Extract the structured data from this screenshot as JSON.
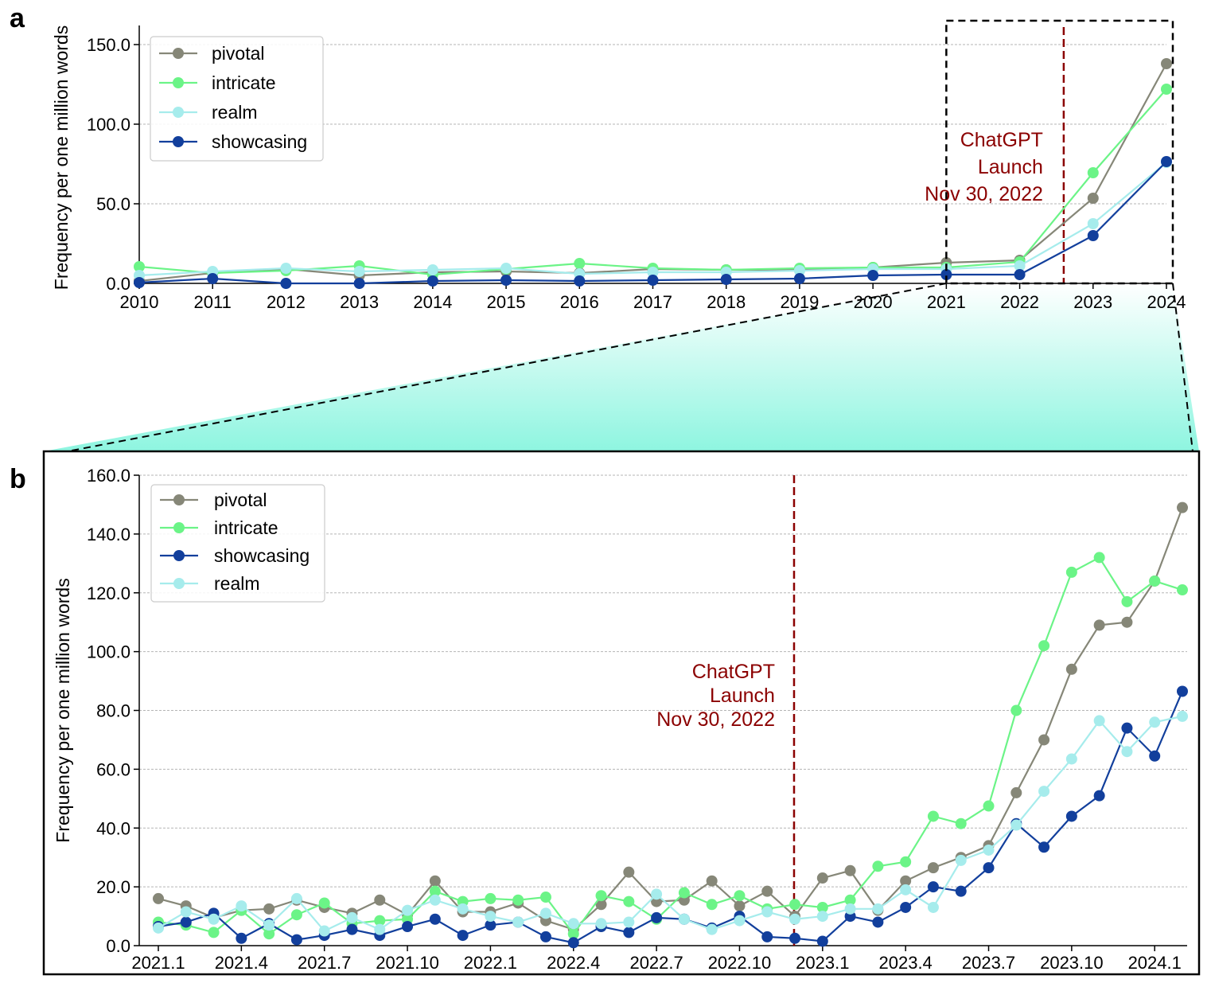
{
  "panels": {
    "a": {
      "letter": "a"
    },
    "b": {
      "letter": "b"
    }
  },
  "colors": {
    "pivotal": "#868778",
    "intricate": "#6bf487",
    "realm": "#a6ecec",
    "showcasing": "#123f9c",
    "annotation": "#8b0000",
    "zoom_fill": "#8ef5e0"
  },
  "chart_data": [
    {
      "id": "a",
      "type": "line",
      "x": [
        2010,
        2011,
        2012,
        2013,
        2014,
        2015,
        2016,
        2017,
        2018,
        2019,
        2020,
        2021,
        2022,
        2023,
        2024
      ],
      "xlim": [
        2010,
        2024
      ],
      "ylim": [
        0,
        160
      ],
      "yticks": [
        0,
        50,
        100,
        150
      ],
      "ytick_labels": [
        "0.0",
        "50.0",
        "100.0",
        "150.0"
      ],
      "xtick_labels": [
        "2010",
        "2011",
        "2012",
        "2013",
        "2014",
        "2015",
        "2016",
        "2017",
        "2018",
        "2019",
        "2020",
        "2021",
        "2022",
        "2023",
        "2024"
      ],
      "ylabel": "Frequency per one million words",
      "xlabel": "",
      "grid": "horizontal dotted",
      "legend_position": "top-left",
      "annotation": {
        "lines": [
          "ChatGPT",
          "Launch",
          "Nov 30, 2022"
        ],
        "x": 2022.6
      },
      "zoom_region": {
        "x": [
          2021,
          2024
        ],
        "y": [
          0,
          165
        ]
      },
      "series": [
        {
          "name": "pivotal",
          "color_key": "pivotal",
          "values": [
            1.5,
            6.5,
            9,
            5,
            7,
            7.5,
            6.5,
            9,
            8.5,
            8.5,
            10,
            13,
            14.5,
            53.5,
            138
          ]
        },
        {
          "name": "intricate",
          "color_key": "intricate",
          "values": [
            10.5,
            6.5,
            8,
            11,
            5.5,
            9,
            12.5,
            9.5,
            8.5,
            9.5,
            10,
            10,
            13.5,
            69.5,
            122
          ]
        },
        {
          "name": "realm",
          "color_key": "realm",
          "values": [
            5,
            7.5,
            9.5,
            7.5,
            8.5,
            9.5,
            6,
            7,
            7,
            8,
            9,
            9,
            11,
            37.5,
            76
          ]
        },
        {
          "name": "showcasing",
          "color_key": "showcasing",
          "values": [
            0.5,
            3,
            0,
            0,
            1.5,
            2,
            1.5,
            2,
            2.5,
            3,
            5,
            5.5,
            5.5,
            30,
            76.5
          ]
        }
      ]
    },
    {
      "id": "b",
      "type": "line",
      "x": [
        "2021.1",
        "2021.2",
        "2021.3",
        "2021.4",
        "2021.5",
        "2021.6",
        "2021.7",
        "2021.8",
        "2021.9",
        "2021.10",
        "2021.11",
        "2021.12",
        "2022.1",
        "2022.2",
        "2022.3",
        "2022.4",
        "2022.5",
        "2022.6",
        "2022.7",
        "2022.8",
        "2022.9",
        "2022.10",
        "2022.11",
        "2022.12",
        "2023.1",
        "2023.2",
        "2023.3",
        "2023.4",
        "2023.5",
        "2023.6",
        "2023.7",
        "2023.8",
        "2023.9",
        "2023.10",
        "2023.11",
        "2023.12",
        "2024.1",
        "2024.2"
      ],
      "xtick_labels": [
        "2021.1",
        "2021.4",
        "2021.7",
        "2021.10",
        "2022.1",
        "2022.4",
        "2022.7",
        "2022.10",
        "2023.1",
        "2023.4",
        "2023.7",
        "2023.10",
        "2024.1"
      ],
      "ylim": [
        0,
        160
      ],
      "yticks": [
        0,
        20,
        40,
        60,
        80,
        100,
        120,
        140,
        160
      ],
      "ytick_labels": [
        "0.0",
        "20.0",
        "40.0",
        "60.0",
        "80.0",
        "100.0",
        "120.0",
        "140.0",
        "160.0"
      ],
      "ylabel": "Frequency per one million words",
      "xlabel": "",
      "grid": "horizontal dotted",
      "legend_position": "top-left",
      "annotation": {
        "lines": [
          "ChatGPT",
          "Launch",
          "Nov 30, 2022"
        ],
        "x": "2022.11 (30 Nov 2022)"
      },
      "series": [
        {
          "name": "pivotal",
          "color_key": "pivotal",
          "values": [
            16,
            13.5,
            9.5,
            12,
            12.5,
            15.5,
            13,
            11,
            15.5,
            10.5,
            22,
            11.5,
            11.5,
            14.5,
            8.5,
            5.5,
            14,
            25,
            15,
            15.5,
            22,
            13.5,
            18.5,
            10,
            23,
            25.5,
            12,
            22,
            26.5,
            30,
            34,
            52,
            70,
            94,
            109,
            110,
            124,
            149
          ]
        },
        {
          "name": "intricate",
          "color_key": "intricate",
          "values": [
            8,
            7,
            4.5,
            12,
            4,
            10.5,
            14.5,
            7.5,
            8.5,
            9,
            18.5,
            15,
            16,
            15.5,
            16.5,
            4,
            17,
            15,
            9,
            18,
            14,
            17,
            12.5,
            14,
            13,
            15.5,
            27,
            28.5,
            44,
            41.5,
            47.5,
            80,
            102,
            127,
            132,
            117,
            124,
            121
          ]
        },
        {
          "name": "showcasing",
          "color_key": "showcasing",
          "values": [
            6.5,
            8,
            11,
            2.5,
            7.5,
            2,
            3.5,
            5.5,
            3.5,
            6.5,
            9,
            3.5,
            7,
            8,
            3,
            1,
            6.5,
            4.5,
            9.5,
            9,
            6,
            10,
            3,
            2.5,
            1.5,
            10,
            8,
            13,
            20,
            18.5,
            26.5,
            41.5,
            33.5,
            44,
            51,
            74,
            64.5,
            86.5
          ]
        },
        {
          "name": "realm",
          "color_key": "realm",
          "values": [
            6,
            11.5,
            9,
            13.5,
            7,
            16,
            5,
            9.5,
            5.5,
            12,
            15.5,
            12.5,
            10,
            8,
            11,
            7.5,
            7.5,
            8,
            17.5,
            9,
            5.5,
            8.5,
            11.5,
            9,
            10,
            12.5,
            12.5,
            19,
            13,
            29,
            32.5,
            41,
            52.5,
            63.5,
            76.5,
            66,
            76,
            78
          ]
        }
      ]
    }
  ]
}
